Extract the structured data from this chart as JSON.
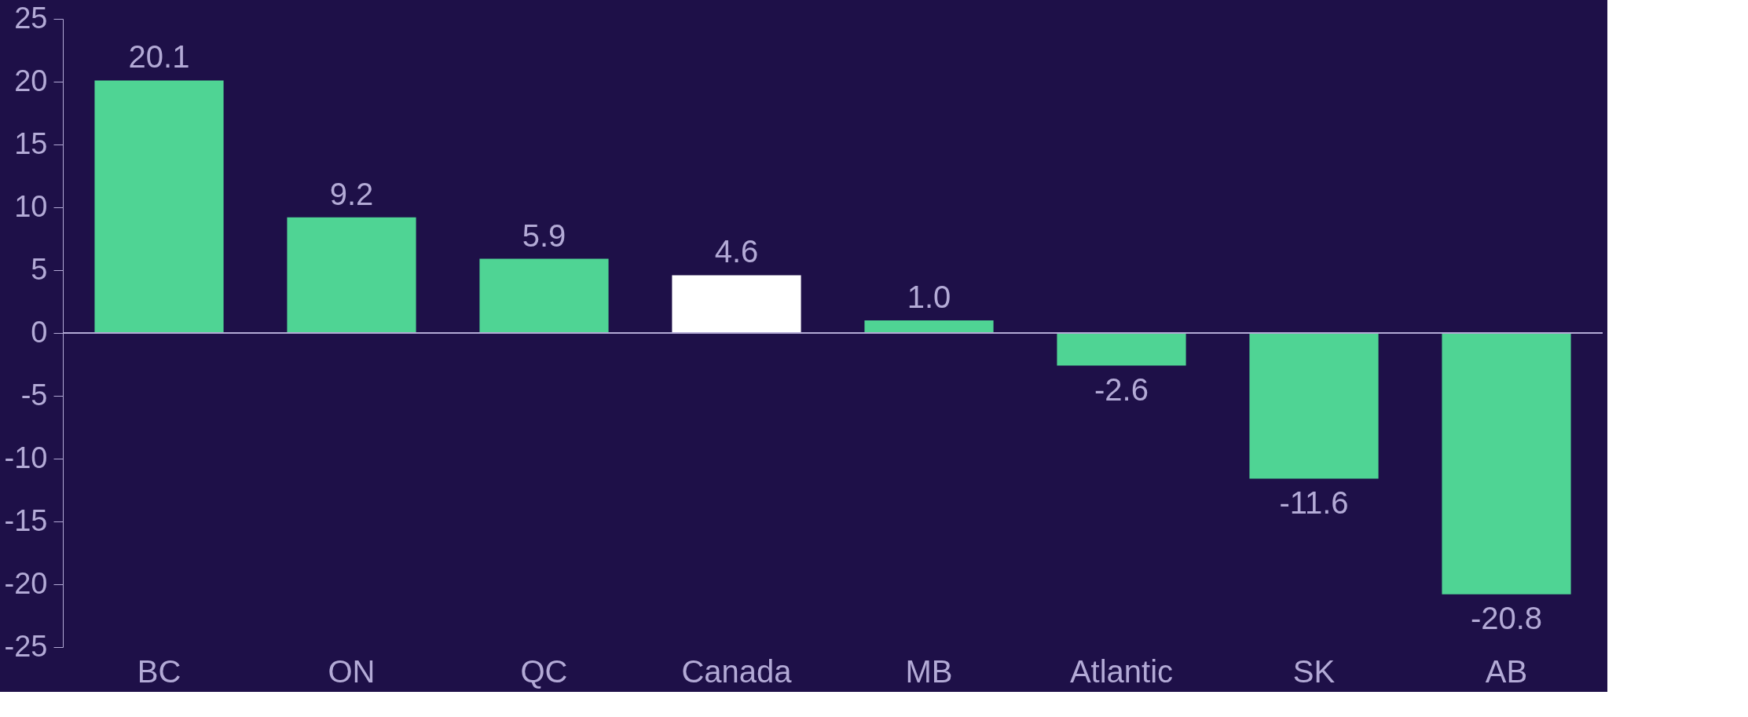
{
  "chart_data": {
    "type": "bar",
    "categories": [
      "BC",
      "ON",
      "QC",
      "Canada",
      "MB",
      "Atlantic",
      "SK",
      "AB"
    ],
    "values": [
      20.1,
      9.2,
      5.9,
      4.6,
      1.0,
      -2.6,
      -11.6,
      -20.8
    ],
    "colors": [
      "#4fd494",
      "#4fd494",
      "#4fd494",
      "#ffffff",
      "#4fd494",
      "#4fd494",
      "#4fd494",
      "#4fd494"
    ],
    "ylim": [
      -25,
      25
    ],
    "yticks": [
      -25,
      -20,
      -15,
      -10,
      -5,
      0,
      5,
      10,
      15,
      20,
      25
    ],
    "value_labels": [
      "20.1",
      "9.2",
      "5.9",
      "4.6",
      "1.0",
      "-2.6",
      "-11.6",
      "-20.8"
    ],
    "ref_lines": [
      {
        "axis": "y",
        "value": 0,
        "color": "#b3aad6"
      }
    ],
    "grid": false
  }
}
